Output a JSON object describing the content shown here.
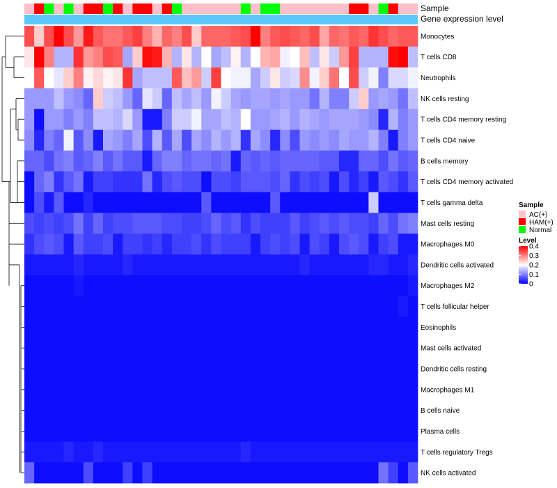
{
  "colors": {
    "low": "#0000ff",
    "mid": "#ffffff",
    "high": "#ff0000",
    "ac": "#ffc0cb",
    "ham": "#ff0000",
    "normal": "#00ff00",
    "expr": "#5ac8fa"
  },
  "chart_data": {
    "type": "heatmap",
    "annotation_rows": [
      "Sample",
      "Gene expression level"
    ],
    "sample_groups": [
      "AC",
      "HAM",
      "NOR",
      "AC",
      "NOR",
      "AC",
      "HAM",
      "HAM",
      "NOR",
      "HAM",
      "AC",
      "HAM",
      "HAM",
      "AC",
      "HAM",
      "NOR",
      "AC",
      "AC",
      "AC",
      "AC",
      "AC",
      "AC",
      "NOR",
      "AC",
      "NOR",
      "NOR",
      "AC",
      "AC",
      "AC",
      "AC",
      "AC",
      "AC",
      "AC",
      "HAM",
      "HAM",
      "AC",
      "NOR",
      "HAM",
      "AC",
      "AC"
    ],
    "rows": [
      {
        "label": "Monocytes",
        "values": [
          0.34,
          0.24,
          0.34,
          0.4,
          0.34,
          0.28,
          0.38,
          0.33,
          0.31,
          0.31,
          0.33,
          0.35,
          0.3,
          0.26,
          0.32,
          0.3,
          0.34,
          0.24,
          0.32,
          0.32,
          0.32,
          0.33,
          0.34,
          0.4,
          0.3,
          0.33,
          0.34,
          0.33,
          0.32,
          0.34,
          0.27,
          0.32,
          0.31,
          0.33,
          0.32,
          0.36,
          0.34,
          0.32,
          0.33,
          0.33
        ]
      },
      {
        "label": "T cells CD8",
        "values": [
          0.22,
          0.4,
          0.3,
          0.14,
          0.14,
          0.36,
          0.28,
          0.3,
          0.34,
          0.33,
          0.13,
          0.24,
          0.39,
          0.38,
          0.26,
          0.14,
          0.22,
          0.14,
          0.2,
          0.13,
          0.15,
          0.21,
          0.14,
          0.2,
          0.26,
          0.27,
          0.19,
          0.2,
          0.25,
          0.15,
          0.22,
          0.16,
          0.28,
          0.35,
          0.14,
          0.14,
          0.14,
          0.39,
          0.4,
          0.15
        ]
      },
      {
        "label": "Neutrophils",
        "values": [
          0.2,
          0.33,
          0.2,
          0.18,
          0.24,
          0.3,
          0.21,
          0.23,
          0.21,
          0.22,
          0.36,
          0.13,
          0.15,
          0.15,
          0.15,
          0.33,
          0.25,
          0.28,
          0.16,
          0.35,
          0.2,
          0.19,
          0.19,
          0.13,
          0.16,
          0.22,
          0.16,
          0.17,
          0.29,
          0.19,
          0.24,
          0.31,
          0.2,
          0.34,
          0.16,
          0.19,
          0.1,
          0.17,
          0.17,
          0.19
        ]
      },
      {
        "label": "NK cells resting",
        "values": [
          0.12,
          0.12,
          0.12,
          0.15,
          0.12,
          0.11,
          0.08,
          0.24,
          0.16,
          0.15,
          0.12,
          0.08,
          0.18,
          0.16,
          0.08,
          0.15,
          0.13,
          0.15,
          0.12,
          0.19,
          0.16,
          0.13,
          0.12,
          0.13,
          0.13,
          0.12,
          0.13,
          0.12,
          0.12,
          0.09,
          0.14,
          0.1,
          0.1,
          0.16,
          0.24,
          0.12,
          0.13,
          0.12,
          0.09,
          0.15
        ]
      },
      {
        "label": "T cells CD4 memory resting",
        "values": [
          0.12,
          0.01,
          0.12,
          0.12,
          0.1,
          0.12,
          0.1,
          0.15,
          0.15,
          0.14,
          0.17,
          0.12,
          0.02,
          0.02,
          0.1,
          0.16,
          0.16,
          0.19,
          0.13,
          0.13,
          0.15,
          0.14,
          0.2,
          0.12,
          0.12,
          0.13,
          0.14,
          0.12,
          0.14,
          0.13,
          0.12,
          0.13,
          0.13,
          0.13,
          0.12,
          0.11,
          0.03,
          0.14,
          0.1,
          0.12
        ]
      },
      {
        "label": "T cells CD4 naive",
        "values": [
          0.11,
          0.03,
          0.1,
          0.08,
          0.19,
          0.07,
          0.11,
          0.02,
          0.13,
          0.12,
          0.1,
          0.13,
          0.06,
          0.14,
          0.07,
          0.13,
          0.06,
          0.13,
          0.11,
          0.14,
          0.12,
          0.14,
          0.04,
          0.13,
          0.11,
          0.03,
          0.11,
          0.06,
          0.12,
          0.11,
          0.12,
          0.11,
          0.13,
          0.12,
          0.12,
          0.14,
          0.1,
          0.02,
          0.1,
          0.12
        ]
      },
      {
        "label": "B cells memory",
        "values": [
          0.08,
          0.08,
          0.06,
          0.09,
          0.1,
          0.07,
          0.08,
          0.1,
          0.07,
          0.09,
          0.07,
          0.07,
          0.02,
          0.08,
          0.1,
          0.1,
          0.08,
          0.09,
          0.09,
          0.08,
          0.09,
          0.02,
          0.08,
          0.07,
          0.08,
          0.07,
          0.08,
          0.08,
          0.08,
          0.08,
          0.07,
          0.07,
          0.03,
          0.03,
          0.08,
          0.08,
          0.06,
          0.09,
          0.07,
          0.08
        ]
      },
      {
        "label": "T cells CD4 memory activated",
        "values": [
          0.01,
          0.08,
          0.1,
          0.04,
          0.07,
          0.09,
          0.02,
          0.05,
          0.05,
          0.04,
          0.04,
          0.04,
          0.09,
          0.03,
          0.06,
          0.07,
          0.06,
          0.06,
          0.01,
          0.06,
          0.06,
          0.05,
          0.07,
          0.07,
          0.07,
          0.06,
          0.08,
          0.04,
          0.06,
          0.05,
          0.06,
          0.02,
          0.06,
          0.03,
          0.05,
          0.02,
          0.07,
          0.06,
          0.04,
          0.07
        ]
      },
      {
        "label": "T cells gamma delta",
        "values": [
          0.01,
          0.06,
          0.02,
          0.07,
          0.01,
          0.01,
          0.03,
          0.01,
          0.01,
          0.01,
          0.01,
          0.01,
          0.01,
          0.01,
          0.01,
          0.01,
          0.01,
          0.01,
          0.07,
          0.01,
          0.01,
          0.01,
          0.01,
          0.01,
          0.01,
          0.07,
          0.01,
          0.01,
          0.01,
          0.01,
          0.01,
          0.01,
          0.01,
          0.01,
          0.01,
          0.16,
          0.01,
          0.01,
          0.01,
          0.01
        ]
      },
      {
        "label": "Mast cells resting",
        "values": [
          0.06,
          0.05,
          0.06,
          0.05,
          0.06,
          0.09,
          0.05,
          0.08,
          0.05,
          0.06,
          0.06,
          0.07,
          0.07,
          0.07,
          0.06,
          0.06,
          0.05,
          0.05,
          0.06,
          0.08,
          0.06,
          0.07,
          0.04,
          0.06,
          0.05,
          0.05,
          0.05,
          0.07,
          0.05,
          0.06,
          0.07,
          0.06,
          0.07,
          0.06,
          0.06,
          0.05,
          0.08,
          0.06,
          0.09,
          0.1
        ]
      },
      {
        "label": "Macrophages M0",
        "values": [
          0.04,
          0.06,
          0.07,
          0.06,
          0.02,
          0.07,
          0.05,
          0.05,
          0.06,
          0.02,
          0.05,
          0.05,
          0.04,
          0.05,
          0.03,
          0.05,
          0.05,
          0.06,
          0.04,
          0.06,
          0.05,
          0.05,
          0.05,
          0.02,
          0.05,
          0.06,
          0.05,
          0.06,
          0.02,
          0.06,
          0.05,
          0.02,
          0.06,
          0.07,
          0.06,
          0.02,
          0.05,
          0.06,
          0.02,
          0.02
        ]
      },
      {
        "label": "Dendritic cells activated",
        "values": [
          0.02,
          0.02,
          0.02,
          0.02,
          0.02,
          0.03,
          0.02,
          0.02,
          0.02,
          0.02,
          0.03,
          0.02,
          0.02,
          0.02,
          0.02,
          0.02,
          0.02,
          0.02,
          0.02,
          0.02,
          0.02,
          0.02,
          0.02,
          0.02,
          0.02,
          0.02,
          0.02,
          0.02,
          0.03,
          0.02,
          0.02,
          0.02,
          0.02,
          0.02,
          0.02,
          0.03,
          0.03,
          0.02,
          0.02,
          0.03
        ]
      },
      {
        "label": "Macrophages M2",
        "values": [
          0.01,
          0.01,
          0.01,
          0.01,
          0.01,
          0.02,
          0.01,
          0.01,
          0.01,
          0.01,
          0.01,
          0.01,
          0.01,
          0.01,
          0.01,
          0.01,
          0.01,
          0.01,
          0.01,
          0.01,
          0.01,
          0.01,
          0.01,
          0.01,
          0.01,
          0.01,
          0.01,
          0.01,
          0.01,
          0.01,
          0.01,
          0.01,
          0.01,
          0.01,
          0.01,
          0.01,
          0.01,
          0.01,
          0.01,
          0.02
        ]
      },
      {
        "label": "T cells follicular helper",
        "values": [
          0.01,
          0.01,
          0.01,
          0.01,
          0.01,
          0.01,
          0.01,
          0.01,
          0.01,
          0.01,
          0.01,
          0.01,
          0.01,
          0.01,
          0.01,
          0.01,
          0.01,
          0.01,
          0.01,
          0.01,
          0.01,
          0.01,
          0.01,
          0.01,
          0.01,
          0.01,
          0.01,
          0.01,
          0.01,
          0.01,
          0.01,
          0.01,
          0.01,
          0.01,
          0.01,
          0.01,
          0.01,
          0.01,
          0.02,
          0.01
        ]
      },
      {
        "label": "Eosinophils",
        "values": [
          0.01,
          0.01,
          0.01,
          0.01,
          0.01,
          0.01,
          0.01,
          0.01,
          0.01,
          0.01,
          0.01,
          0.01,
          0.01,
          0.01,
          0.01,
          0.01,
          0.01,
          0.01,
          0.01,
          0.01,
          0.01,
          0.01,
          0.01,
          0.01,
          0.01,
          0.01,
          0.01,
          0.01,
          0.01,
          0.01,
          0.01,
          0.01,
          0.01,
          0.01,
          0.01,
          0.01,
          0.01,
          0.01,
          0.01,
          0.01
        ]
      },
      {
        "label": "Mast cells activated",
        "values": [
          0.01,
          0.01,
          0.01,
          0.01,
          0.01,
          0.01,
          0.01,
          0.01,
          0.01,
          0.01,
          0.01,
          0.01,
          0.01,
          0.01,
          0.01,
          0.01,
          0.01,
          0.01,
          0.01,
          0.01,
          0.01,
          0.01,
          0.01,
          0.01,
          0.01,
          0.01,
          0.01,
          0.01,
          0.01,
          0.01,
          0.01,
          0.01,
          0.01,
          0.01,
          0.01,
          0.01,
          0.01,
          0.01,
          0.01,
          0.01
        ]
      },
      {
        "label": "Dendritic cells resting",
        "values": [
          0.01,
          0.01,
          0.01,
          0.01,
          0.01,
          0.01,
          0.01,
          0.01,
          0.01,
          0.01,
          0.01,
          0.01,
          0.01,
          0.01,
          0.01,
          0.01,
          0.01,
          0.01,
          0.01,
          0.01,
          0.01,
          0.01,
          0.01,
          0.01,
          0.01,
          0.01,
          0.01,
          0.01,
          0.01,
          0.01,
          0.01,
          0.01,
          0.01,
          0.01,
          0.01,
          0.01,
          0.01,
          0.01,
          0.01,
          0.01
        ]
      },
      {
        "label": "Macrophages M1",
        "values": [
          0.01,
          0.01,
          0.01,
          0.01,
          0.01,
          0.01,
          0.01,
          0.01,
          0.01,
          0.01,
          0.01,
          0.01,
          0.01,
          0.01,
          0.01,
          0.01,
          0.01,
          0.01,
          0.01,
          0.01,
          0.01,
          0.01,
          0.01,
          0.01,
          0.01,
          0.01,
          0.01,
          0.01,
          0.01,
          0.01,
          0.01,
          0.01,
          0.01,
          0.01,
          0.01,
          0.01,
          0.01,
          0.01,
          0.01,
          0.01
        ]
      },
      {
        "label": "B cells naive",
        "values": [
          0.01,
          0.01,
          0.01,
          0.01,
          0.01,
          0.01,
          0.01,
          0.01,
          0.01,
          0.01,
          0.01,
          0.01,
          0.01,
          0.01,
          0.01,
          0.01,
          0.01,
          0.01,
          0.01,
          0.01,
          0.01,
          0.01,
          0.01,
          0.01,
          0.01,
          0.01,
          0.01,
          0.01,
          0.01,
          0.01,
          0.01,
          0.01,
          0.01,
          0.01,
          0.01,
          0.01,
          0.01,
          0.01,
          0.01,
          0.01
        ]
      },
      {
        "label": "Plasma cells",
        "values": [
          0.01,
          0.01,
          0.01,
          0.01,
          0.01,
          0.01,
          0.01,
          0.01,
          0.01,
          0.01,
          0.01,
          0.01,
          0.01,
          0.01,
          0.01,
          0.01,
          0.01,
          0.01,
          0.01,
          0.01,
          0.01,
          0.01,
          0.01,
          0.01,
          0.01,
          0.01,
          0.01,
          0.01,
          0.01,
          0.01,
          0.01,
          0.01,
          0.01,
          0.01,
          0.01,
          0.01,
          0.01,
          0.01,
          0.01,
          0.01
        ]
      },
      {
        "label": "T cells regulatory  Tregs",
        "values": [
          0.02,
          0.02,
          0.02,
          0.02,
          0.03,
          0.02,
          0.02,
          0.03,
          0.02,
          0.02,
          0.02,
          0.02,
          0.02,
          0.02,
          0.02,
          0.02,
          0.02,
          0.02,
          0.02,
          0.02,
          0.02,
          0.02,
          0.03,
          0.02,
          0.02,
          0.02,
          0.02,
          0.02,
          0.02,
          0.02,
          0.02,
          0.02,
          0.02,
          0.02,
          0.02,
          0.02,
          0.02,
          0.02,
          0.02,
          0.02
        ]
      },
      {
        "label": "NK cells activated",
        "values": [
          0.08,
          0.01,
          0.01,
          0.01,
          0.01,
          0.01,
          0.06,
          0.01,
          0.01,
          0.01,
          0.05,
          0.01,
          0.05,
          0.01,
          0.01,
          0.01,
          0.01,
          0.01,
          0.01,
          0.01,
          0.01,
          0.01,
          0.01,
          0.01,
          0.01,
          0.01,
          0.01,
          0.01,
          0.01,
          0.01,
          0.01,
          0.01,
          0.01,
          0.01,
          0.01,
          0.01,
          0.09,
          0.05,
          0.01,
          0.07
        ]
      }
    ],
    "color_scale": {
      "min": 0,
      "max": 0.4,
      "midpoint": 0.2
    },
    "legend": {
      "sample_title": "Sample",
      "sample_items": [
        {
          "key": "AC",
          "label": "AC(+)"
        },
        {
          "key": "HAM",
          "label": "HAM(+)"
        },
        {
          "key": "NOR",
          "label": "Normal"
        }
      ],
      "level_title": "Level",
      "level_ticks": [
        {
          "value": 0.4,
          "label": "0.4"
        },
        {
          "value": 0.3,
          "label": "0.3"
        },
        {
          "value": 0.2,
          "label": "0.2"
        },
        {
          "value": 0.1,
          "label": "0.1"
        },
        {
          "value": 0,
          "label": "0"
        }
      ]
    }
  }
}
